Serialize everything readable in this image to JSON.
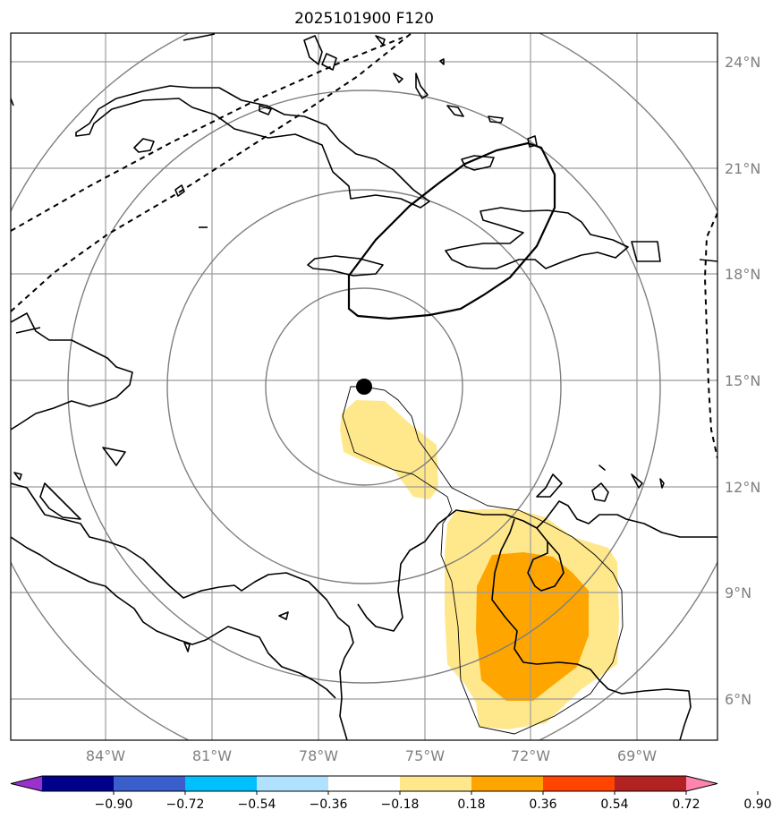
{
  "title": "2025101900 F120",
  "map": {
    "latitude_labels": [
      "24°N",
      "21°N",
      "18°N",
      "15°N",
      "12°N",
      "9°N",
      "6°N"
    ],
    "longitude_labels": [
      "84°W",
      "81°W",
      "78°W",
      "75°W",
      "72°W",
      "69°W"
    ],
    "storm_center": {
      "lat": 14.8,
      "lon": -76.3
    },
    "range_rings": "concentric rings around storm center",
    "fill_colors": {
      "low": "#ffe88c",
      "mid": "#ffa500"
    }
  },
  "colorbar": {
    "ticks": [
      "−0.90",
      "−0.72",
      "−0.54",
      "−0.36",
      "−0.18",
      "0.18",
      "0.36",
      "0.54",
      "0.72",
      "0.90"
    ],
    "colors": [
      "#9932cc",
      "#00008b",
      "#3a5fcd",
      "#00bfff",
      "#b0e2ff",
      "#ffffff",
      "#ffe88c",
      "#ffa500",
      "#ff4500",
      "#b22222",
      "#ff85ae"
    ]
  }
}
